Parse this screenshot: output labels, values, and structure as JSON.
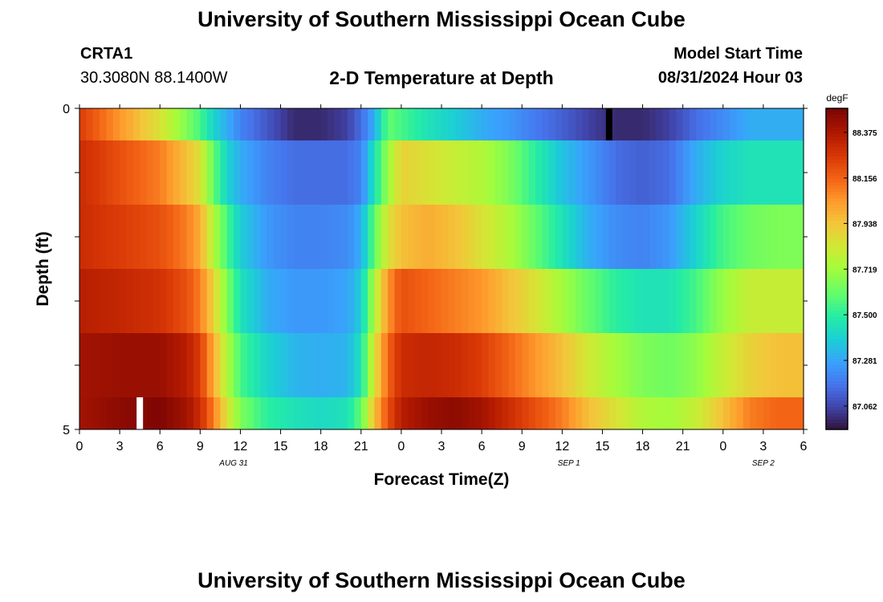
{
  "header": {
    "title": "University of Southern Mississippi Ocean Cube",
    "station_id": "CRTA1",
    "coordinates": "30.3080N  88.1400W",
    "subtitle": "2-D Temperature at Depth",
    "model_start_label": "Model Start Time",
    "model_start_value": "08/31/2024 Hour 03"
  },
  "footer": {
    "title": "University of Southern Mississippi Ocean Cube"
  },
  "chart_data": {
    "type": "heatmap",
    "title": "2-D Temperature at Depth",
    "xlabel": "Forecast Time(Z)",
    "ylabel": "Depth (ft)",
    "colorbar_label": "degF",
    "colorbar_ticks": [
      "88.375",
      "88.156",
      "87.938",
      "87.719",
      "87.500",
      "87.281",
      "87.062"
    ],
    "value_range": [
      86.95,
      88.49
    ],
    "x_range_hours": [
      0,
      54
    ],
    "y_range_ft": [
      0,
      5
    ],
    "y_tick_labels": [
      "0",
      "5"
    ],
    "x_tick_labels": [
      "0",
      "3",
      "6",
      "9",
      "12",
      "15",
      "18",
      "21",
      "0",
      "3",
      "6",
      "9",
      "12",
      "15",
      "18",
      "21",
      "0",
      "3",
      "6"
    ],
    "date_labels": [
      {
        "text": "AUG 31",
        "hour": 11.5
      },
      {
        "text": "SEP 1",
        "hour": 36.5
      },
      {
        "text": "SEP 2",
        "hour": 51
      }
    ],
    "depth_layers_ft": [
      0.25,
      1.25,
      2.25,
      3.25,
      4.25,
      4.75
    ],
    "control_points": {
      "hours": [
        0,
        3,
        6,
        8,
        9,
        10,
        11,
        12,
        14,
        16,
        18,
        20,
        21,
        22,
        23,
        24,
        26,
        28,
        30,
        32,
        34,
        36,
        38,
        40,
        42,
        44,
        46,
        48,
        50,
        52,
        54
      ],
      "temps": [
        [
          88.25,
          88.05,
          87.85,
          87.65,
          87.55,
          87.4,
          87.3,
          87.2,
          87.1,
          87.0,
          87.0,
          87.05,
          87.15,
          87.3,
          87.6,
          87.55,
          87.45,
          87.38,
          87.3,
          87.25,
          87.18,
          87.12,
          87.05,
          87.0,
          87.0,
          87.05,
          87.15,
          87.22,
          87.3,
          87.3,
          87.3
        ],
        [
          88.3,
          88.2,
          88.1,
          87.95,
          87.85,
          87.6,
          87.4,
          87.3,
          87.2,
          87.15,
          87.15,
          87.15,
          87.2,
          87.45,
          87.7,
          87.9,
          87.85,
          87.8,
          87.75,
          87.65,
          87.5,
          87.35,
          87.25,
          87.15,
          87.12,
          87.15,
          87.3,
          87.4,
          87.45,
          87.45,
          87.45
        ],
        [
          88.3,
          88.25,
          88.2,
          88.1,
          88.0,
          87.75,
          87.55,
          87.38,
          87.25,
          87.2,
          87.2,
          87.22,
          87.3,
          87.6,
          87.85,
          87.95,
          88.0,
          87.95,
          87.85,
          87.75,
          87.6,
          87.45,
          87.3,
          87.22,
          87.2,
          87.25,
          87.4,
          87.55,
          87.62,
          87.65,
          87.65
        ],
        [
          88.35,
          88.32,
          88.28,
          88.2,
          88.1,
          87.9,
          87.65,
          87.45,
          87.3,
          87.25,
          87.25,
          87.28,
          87.38,
          87.75,
          88.05,
          88.2,
          88.15,
          88.1,
          88.05,
          87.95,
          87.85,
          87.72,
          87.6,
          87.5,
          87.45,
          87.45,
          87.55,
          87.7,
          87.8,
          87.8,
          87.8
        ],
        [
          88.4,
          88.42,
          88.42,
          88.35,
          88.25,
          88.0,
          87.75,
          87.55,
          87.4,
          87.32,
          87.3,
          87.32,
          87.45,
          87.85,
          88.15,
          88.3,
          88.32,
          88.3,
          88.25,
          88.15,
          88.05,
          87.95,
          87.82,
          87.72,
          87.65,
          87.62,
          87.68,
          87.8,
          87.9,
          87.95,
          87.95
        ],
        [
          88.4,
          88.45,
          88.48,
          88.4,
          88.3,
          88.1,
          87.85,
          87.65,
          87.5,
          87.45,
          87.42,
          87.45,
          87.6,
          87.95,
          88.2,
          88.35,
          88.42,
          88.45,
          88.4,
          88.3,
          88.2,
          88.1,
          87.95,
          87.85,
          87.75,
          87.72,
          87.8,
          87.95,
          88.1,
          88.15,
          88.15
        ]
      ]
    },
    "missing_markers": [
      {
        "hour": 4.5,
        "layer": 5,
        "color": "#ffffff"
      },
      {
        "hour": 39.5,
        "layer": 0,
        "color": "#000000"
      }
    ]
  }
}
